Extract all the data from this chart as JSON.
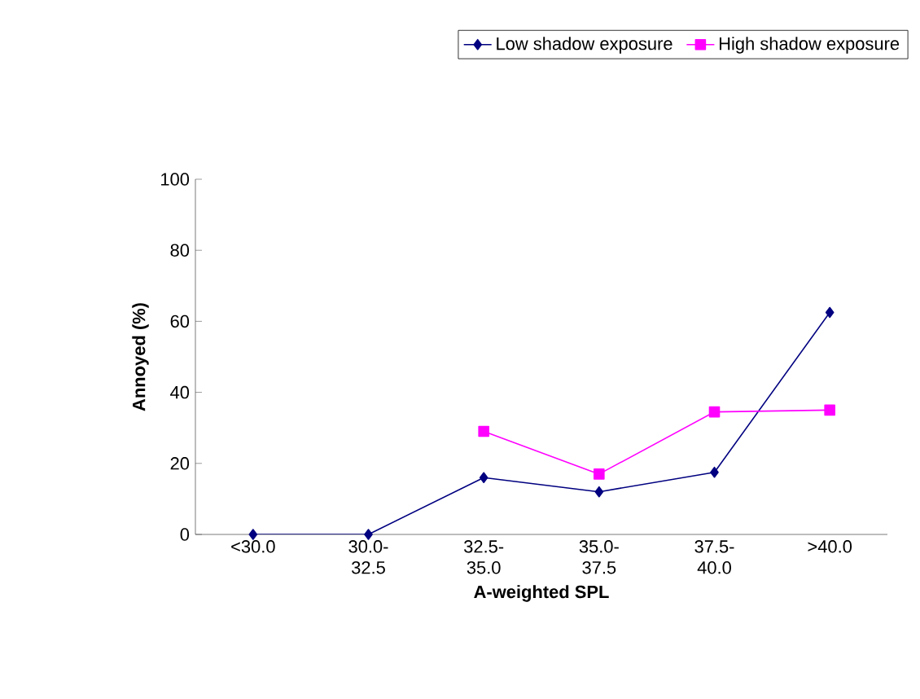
{
  "chart_data": {
    "type": "line",
    "xlabel": "A-weighted SPL",
    "ylabel": "Annoyed (%)",
    "categories": [
      "<30.0",
      "30.0-32.5",
      "32.5-35.0",
      "35.0-37.5",
      "37.5-40.0",
      ">40.0"
    ],
    "series": [
      {
        "name": "Low shadow exposure",
        "color": "#000080",
        "marker": "diamond",
        "values": [
          0,
          0,
          16,
          12,
          17.5,
          62.5
        ]
      },
      {
        "name": "High shadow exposure",
        "color": "#ff00ff",
        "marker": "square",
        "values": [
          null,
          null,
          29,
          17,
          34.5,
          35
        ]
      }
    ],
    "ylim": [
      0,
      100
    ],
    "yticks": [
      0,
      20,
      40,
      60,
      80,
      100
    ],
    "grid": false,
    "legend": "top right"
  }
}
